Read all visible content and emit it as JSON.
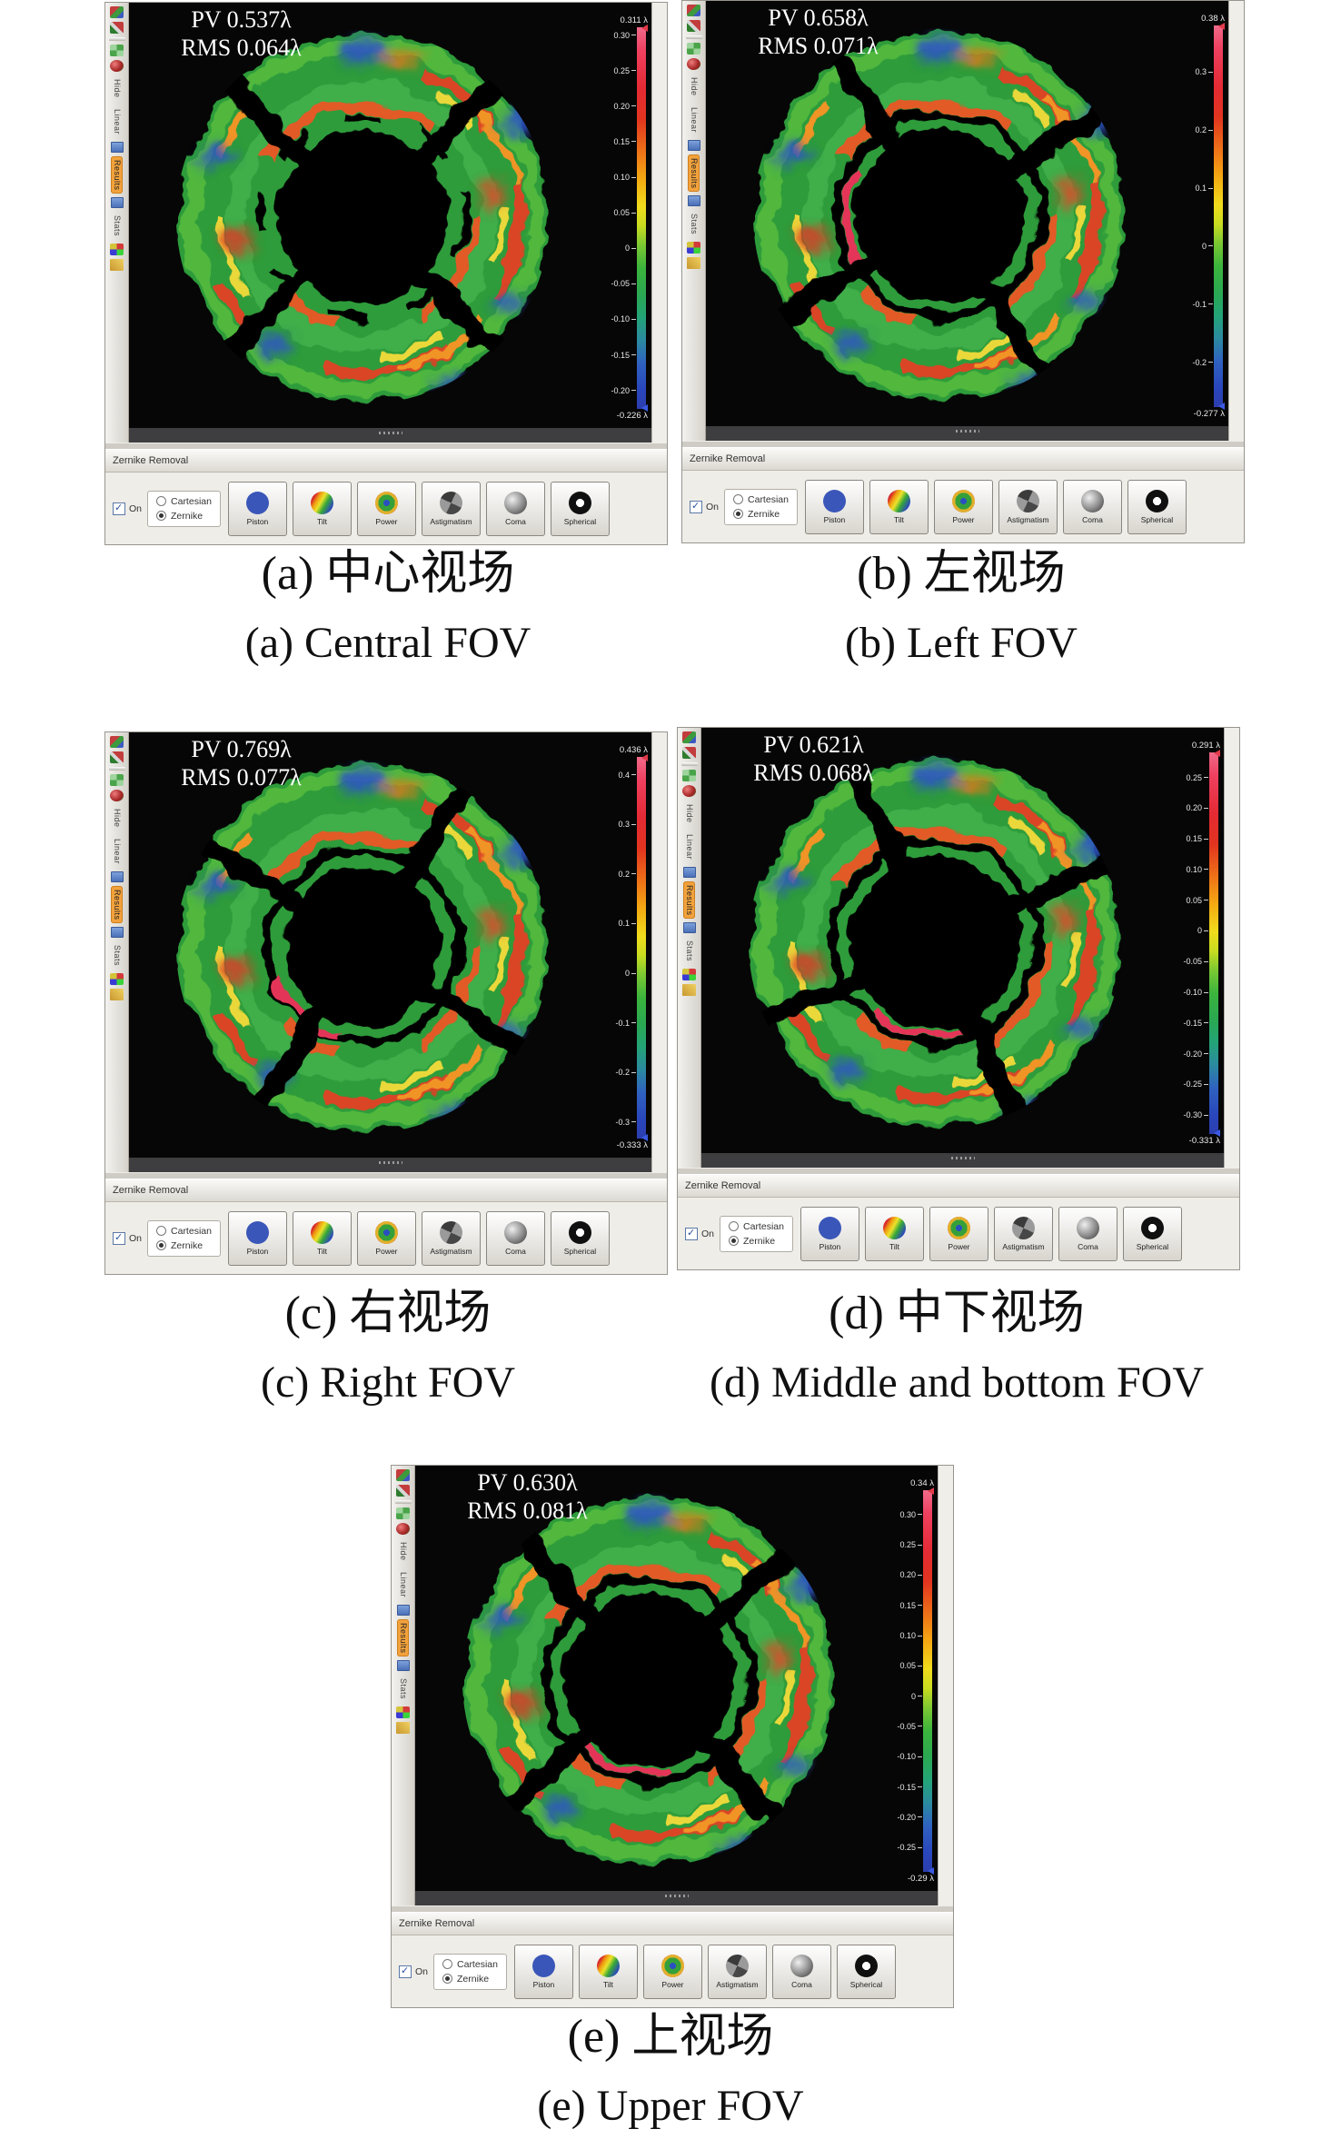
{
  "figure": {
    "panels": [
      {
        "id": "a",
        "pv": "PV 0.537λ",
        "rms": "RMS 0.064λ",
        "scale_max_label": "0.311 λ",
        "scale_min_label": "-0.226 λ",
        "ticks": [
          "0.30",
          "0.25",
          "0.20",
          "0.15",
          "0.10",
          "0.05",
          "0",
          "-0.05",
          "-0.10",
          "-0.15",
          "-0.20"
        ],
        "caption_zh": "(a) 中心视场",
        "caption_en": "(a) Central FOV"
      },
      {
        "id": "b",
        "pv": "PV 0.658λ",
        "rms": "RMS 0.071λ",
        "scale_max_label": "0.38 λ",
        "scale_min_label": "-0.277 λ",
        "ticks": [
          "0.3",
          "0.2",
          "0.1",
          "0",
          "-0.1",
          "-0.2"
        ],
        "caption_zh": "(b) 左视场",
        "caption_en": "(b) Left FOV"
      },
      {
        "id": "c",
        "pv": "PV 0.769λ",
        "rms": "RMS 0.077λ",
        "scale_max_label": "0.436 λ",
        "scale_min_label": "-0.333 λ",
        "ticks": [
          "0.4",
          "0.3",
          "0.2",
          "0.1",
          "0",
          "-0.1",
          "-0.2",
          "-0.3"
        ],
        "caption_zh": "(c) 右视场",
        "caption_en": "(c) Right FOV"
      },
      {
        "id": "d",
        "pv": "PV 0.621λ",
        "rms": "RMS 0.068λ",
        "scale_max_label": "0.291 λ",
        "scale_min_label": "-0.331 λ",
        "ticks": [
          "0.25",
          "0.20",
          "0.15",
          "0.10",
          "0.05",
          "0",
          "-0.05",
          "-0.10",
          "-0.15",
          "-0.20",
          "-0.25",
          "-0.30"
        ],
        "caption_zh": "(d) 中下视场",
        "caption_en": "(d) Middle and bottom FOV"
      },
      {
        "id": "e",
        "pv": "PV 0.630λ",
        "rms": "RMS 0.081λ",
        "scale_max_label": "0.34 λ",
        "scale_min_label": "-0.29 λ",
        "ticks": [
          "0.30",
          "0.25",
          "0.20",
          "0.15",
          "0.10",
          "0.05",
          "0",
          "-0.05",
          "-0.10",
          "-0.15",
          "-0.20",
          "-0.25"
        ],
        "caption_zh": "(e) 上视场",
        "caption_en": "(e) Upper FOV"
      }
    ]
  },
  "ui": {
    "sidebar": {
      "tabs": [
        "Hide",
        "Linear",
        "Results",
        "Stats"
      ],
      "active_tab": "Results"
    },
    "toolbar": {
      "title": "Zernike Removal",
      "on_label": "On",
      "radio_options": [
        "Cartesian",
        "Zernike"
      ],
      "selected_radio": "Zernike",
      "buttons": [
        "Piston",
        "Tilt",
        "Power",
        "Astigmatism",
        "Coma",
        "Spherical"
      ]
    }
  }
}
